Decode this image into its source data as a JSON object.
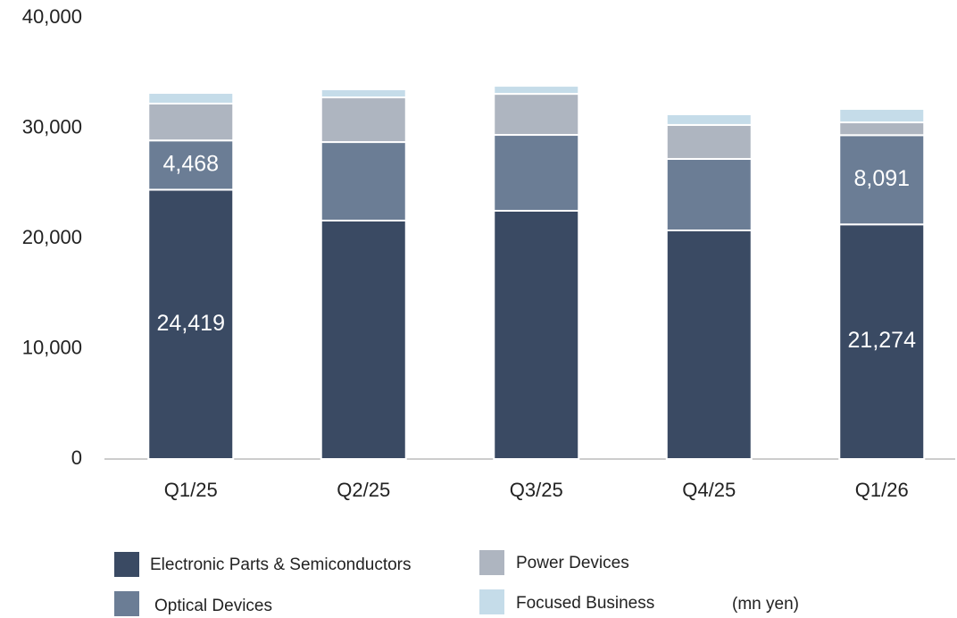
{
  "chart_data": {
    "type": "stacked_bar",
    "categories": [
      "Q1/25",
      "Q2/25",
      "Q3/25",
      "Q4/25",
      "Q1/26"
    ],
    "series": [
      {
        "name": "Electronic Parts & Semiconductors",
        "color": "#3a4a63",
        "values": [
          24419,
          21620,
          22510,
          20730,
          21274
        ],
        "value_labels": [
          "24,419",
          null,
          null,
          null,
          "21,274"
        ]
      },
      {
        "name": "Optical Devices",
        "color": "#6b7d95",
        "values": [
          4468,
          7120,
          6880,
          6480,
          8091
        ],
        "value_labels": [
          "4,468",
          null,
          null,
          null,
          "8,091"
        ]
      },
      {
        "name": "Power Devices",
        "color": "#aeb5c0",
        "values": [
          3340,
          4050,
          3720,
          3080,
          1160
        ]
      },
      {
        "name": "Focused Business",
        "color": "#c5dce9",
        "values": [
          970,
          730,
          730,
          970,
          1220
        ]
      }
    ],
    "ylim": [
      0,
      40000
    ],
    "yticks": [
      0,
      {
        "value": 10000,
        "label": "10,000"
      },
      {
        "value": 20000,
        "label": "20,000"
      },
      {
        "value": 30000,
        "label": "30,000"
      },
      {
        "value": 40000,
        "label": "40,000"
      }
    ],
    "unit_note": "(mn yen)"
  }
}
